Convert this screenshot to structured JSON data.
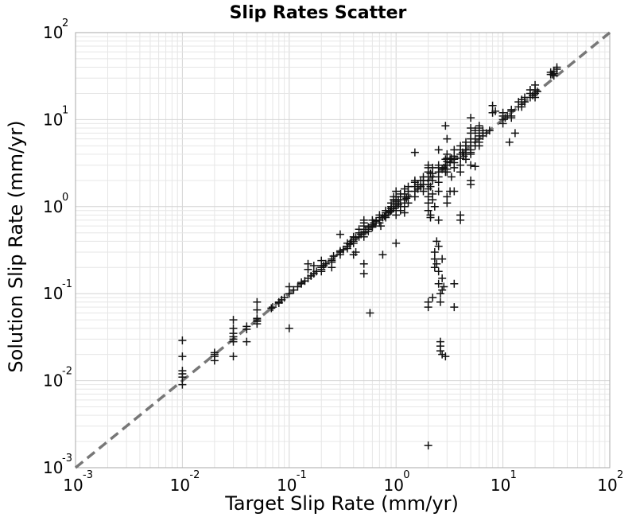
{
  "chart_data": {
    "type": "scatter",
    "title": "Slip Rates Scatter",
    "xlabel": "Target Slip Rate (mm/yr)",
    "ylabel": "Solution Slip Rate (mm/yr)",
    "xscale": "log",
    "yscale": "log",
    "xlim": [
      0.001,
      100
    ],
    "ylim": [
      0.001,
      100
    ],
    "grid": true,
    "marker": "plus",
    "marker_color": "#111111",
    "reference_line": {
      "style": "dashed",
      "color": "#777777",
      "from": [
        0.001,
        0.001
      ],
      "to": [
        100,
        100
      ]
    },
    "x_ticks": [
      {
        "base": "10",
        "exp": "-3"
      },
      {
        "base": "10",
        "exp": "-2"
      },
      {
        "base": "10",
        "exp": "-1"
      },
      {
        "base": "10",
        "exp": "0"
      },
      {
        "base": "10",
        "exp": "1"
      },
      {
        "base": "10",
        "exp": "2"
      }
    ],
    "y_ticks": [
      {
        "base": "10",
        "exp": "-3"
      },
      {
        "base": "10",
        "exp": "-2"
      },
      {
        "base": "10",
        "exp": "-1"
      },
      {
        "base": "10",
        "exp": "0"
      },
      {
        "base": "10",
        "exp": "1"
      },
      {
        "base": "10",
        "exp": "2"
      }
    ],
    "points": [
      [
        0.01,
        0.029
      ],
      [
        0.01,
        0.019
      ],
      [
        0.01,
        0.013
      ],
      [
        0.01,
        0.011
      ],
      [
        0.01,
        0.009
      ],
      [
        0.01,
        0.012
      ],
      [
        0.02,
        0.021
      ],
      [
        0.02,
        0.019
      ],
      [
        0.02,
        0.017
      ],
      [
        0.02,
        0.02
      ],
      [
        0.03,
        0.05
      ],
      [
        0.03,
        0.04
      ],
      [
        0.03,
        0.035
      ],
      [
        0.03,
        0.03
      ],
      [
        0.03,
        0.028
      ],
      [
        0.03,
        0.019
      ],
      [
        0.03,
        0.032
      ],
      [
        0.04,
        0.039
      ],
      [
        0.04,
        0.028
      ],
      [
        0.04,
        0.042
      ],
      [
        0.05,
        0.08
      ],
      [
        0.05,
        0.065
      ],
      [
        0.05,
        0.05
      ],
      [
        0.05,
        0.048
      ],
      [
        0.05,
        0.045
      ],
      [
        0.05,
        0.052
      ],
      [
        0.07,
        0.07
      ],
      [
        0.068,
        0.068
      ],
      [
        0.08,
        0.08
      ],
      [
        0.085,
        0.085
      ],
      [
        0.09,
        0.09
      ],
      [
        0.08,
        0.078
      ],
      [
        0.1,
        0.1
      ],
      [
        0.1,
        0.04
      ],
      [
        0.1,
        0.12
      ],
      [
        0.11,
        0.11
      ],
      [
        0.12,
        0.12
      ],
      [
        0.13,
        0.135
      ],
      [
        0.14,
        0.14
      ],
      [
        0.15,
        0.15
      ],
      [
        0.13,
        0.13
      ],
      [
        0.15,
        0.22
      ],
      [
        0.15,
        0.19
      ],
      [
        0.17,
        0.21
      ],
      [
        0.17,
        0.17
      ],
      [
        0.18,
        0.18
      ],
      [
        0.16,
        0.16
      ],
      [
        0.2,
        0.2
      ],
      [
        0.2,
        0.21
      ],
      [
        0.22,
        0.22
      ],
      [
        0.2,
        0.24
      ],
      [
        0.2,
        0.19
      ],
      [
        0.2,
        0.18
      ],
      [
        0.21,
        0.21
      ],
      [
        0.25,
        0.25
      ],
      [
        0.26,
        0.27
      ],
      [
        0.25,
        0.24
      ],
      [
        0.25,
        0.2
      ],
      [
        0.25,
        0.23
      ],
      [
        0.3,
        0.3
      ],
      [
        0.3,
        0.28
      ],
      [
        0.3,
        0.48
      ],
      [
        0.32,
        0.32
      ],
      [
        0.3,
        0.31
      ],
      [
        0.35,
        0.35
      ],
      [
        0.35,
        0.38
      ],
      [
        0.35,
        0.33
      ],
      [
        0.37,
        0.37
      ],
      [
        0.38,
        0.4
      ],
      [
        0.4,
        0.4
      ],
      [
        0.4,
        0.42
      ],
      [
        0.42,
        0.3
      ],
      [
        0.4,
        0.38
      ],
      [
        0.42,
        0.44
      ],
      [
        0.4,
        0.28
      ],
      [
        0.4,
        0.45
      ],
      [
        0.45,
        0.45
      ],
      [
        0.45,
        0.5
      ],
      [
        0.47,
        0.48
      ],
      [
        0.45,
        0.55
      ],
      [
        0.5,
        0.5
      ],
      [
        0.5,
        0.55
      ],
      [
        0.5,
        0.6
      ],
      [
        0.5,
        0.45
      ],
      [
        0.5,
        0.7
      ],
      [
        0.5,
        0.22
      ],
      [
        0.5,
        0.17
      ],
      [
        0.5,
        0.65
      ],
      [
        0.52,
        0.52
      ],
      [
        0.55,
        0.55
      ],
      [
        0.55,
        0.58
      ],
      [
        0.55,
        0.52
      ],
      [
        0.57,
        0.06
      ],
      [
        0.6,
        0.6
      ],
      [
        0.6,
        0.62
      ],
      [
        0.6,
        0.58
      ],
      [
        0.62,
        0.65
      ],
      [
        0.6,
        0.7
      ],
      [
        0.65,
        0.65
      ],
      [
        0.65,
        0.68
      ],
      [
        0.7,
        0.7
      ],
      [
        0.7,
        0.75
      ],
      [
        0.7,
        0.65
      ],
      [
        0.7,
        0.8
      ],
      [
        0.72,
        0.6
      ],
      [
        0.75,
        0.75
      ],
      [
        0.75,
        0.28
      ],
      [
        0.78,
        0.78
      ],
      [
        0.8,
        0.8
      ],
      [
        0.8,
        0.85
      ],
      [
        0.8,
        0.75
      ],
      [
        0.8,
        0.9
      ],
      [
        0.85,
        0.85
      ],
      [
        0.85,
        0.9
      ],
      [
        0.88,
        0.88
      ],
      [
        0.9,
        0.9
      ],
      [
        0.9,
        1.0
      ],
      [
        0.9,
        1.1
      ],
      [
        0.9,
        0.95
      ],
      [
        0.95,
        0.95
      ],
      [
        0.95,
        1.0
      ],
      [
        0.95,
        1.2
      ],
      [
        0.95,
        1.3
      ],
      [
        1.0,
        1.0
      ],
      [
        1.0,
        1.1
      ],
      [
        1.0,
        1.2
      ],
      [
        1.0,
        1.3
      ],
      [
        1.0,
        1.5
      ],
      [
        1.0,
        0.9
      ],
      [
        1.0,
        0.8
      ],
      [
        1.0,
        0.38
      ],
      [
        1.0,
        1.05
      ],
      [
        1.0,
        1.15
      ],
      [
        1.05,
        1.05
      ],
      [
        1.05,
        1.2
      ],
      [
        1.1,
        1.1
      ],
      [
        1.1,
        1.3
      ],
      [
        1.1,
        1.0
      ],
      [
        1.1,
        1.4
      ],
      [
        1.1,
        0.9
      ],
      [
        1.2,
        1.2
      ],
      [
        1.2,
        1.4
      ],
      [
        1.2,
        1.0
      ],
      [
        1.2,
        0.85
      ],
      [
        1.2,
        1.6
      ],
      [
        1.25,
        1.25
      ],
      [
        1.3,
        1.3
      ],
      [
        1.3,
        1.5
      ],
      [
        1.3,
        1.1
      ],
      [
        1.3,
        1.7
      ],
      [
        1.5,
        1.5
      ],
      [
        1.5,
        1.7
      ],
      [
        1.5,
        1.3
      ],
      [
        1.5,
        4.2
      ],
      [
        1.5,
        1.9
      ],
      [
        1.5,
        2.0
      ],
      [
        1.6,
        1.6
      ],
      [
        1.6,
        1.8
      ],
      [
        1.7,
        1.7
      ],
      [
        1.7,
        2.0
      ],
      [
        1.8,
        1.8
      ],
      [
        1.8,
        2.0
      ],
      [
        1.8,
        1.5
      ],
      [
        1.8,
        2.2
      ],
      [
        2.0,
        2.0
      ],
      [
        2.0,
        2.2
      ],
      [
        2.0,
        2.5
      ],
      [
        2.0,
        1.8
      ],
      [
        2.0,
        1.6
      ],
      [
        2.0,
        1.3
      ],
      [
        2.0,
        1.1
      ],
      [
        2.0,
        3.0
      ],
      [
        2.0,
        0.08
      ],
      [
        2.0,
        0.07
      ],
      [
        2.0,
        0.0018
      ],
      [
        2.0,
        0.9
      ],
      [
        2.0,
        2.8
      ],
      [
        2.1,
        2.4
      ],
      [
        2.1,
        1.7
      ],
      [
        2.1,
        0.8
      ],
      [
        2.1,
        0.75
      ],
      [
        2.2,
        2.2
      ],
      [
        2.2,
        2.4
      ],
      [
        2.2,
        2.0
      ],
      [
        2.2,
        2.8
      ],
      [
        2.2,
        0.09
      ],
      [
        2.2,
        1.4
      ],
      [
        2.2,
        1.2
      ],
      [
        2.3,
        0.3
      ],
      [
        2.3,
        0.25
      ],
      [
        2.3,
        0.2
      ],
      [
        2.3,
        1.0
      ],
      [
        2.4,
        0.22
      ],
      [
        2.4,
        0.4
      ],
      [
        2.5,
        2.5
      ],
      [
        2.5,
        2.8
      ],
      [
        2.5,
        3.0
      ],
      [
        2.5,
        2.2
      ],
      [
        2.5,
        1.9
      ],
      [
        2.5,
        0.35
      ],
      [
        2.5,
        0.18
      ],
      [
        2.5,
        0.13
      ],
      [
        2.5,
        0.7
      ],
      [
        2.5,
        1.5
      ],
      [
        2.5,
        4.5
      ],
      [
        2.6,
        0.08
      ],
      [
        2.6,
        0.025
      ],
      [
        2.6,
        0.022
      ],
      [
        2.6,
        0.028
      ],
      [
        2.6,
        0.1
      ],
      [
        2.7,
        2.7
      ],
      [
        2.7,
        0.25
      ],
      [
        2.7,
        0.15
      ],
      [
        2.7,
        0.11
      ],
      [
        2.7,
        0.02
      ],
      [
        2.8,
        2.8
      ],
      [
        2.8,
        0.12
      ],
      [
        2.9,
        3.0
      ],
      [
        2.9,
        8.5
      ],
      [
        2.9,
        3.5
      ],
      [
        2.9,
        2.5
      ],
      [
        2.9,
        0.019
      ],
      [
        3.0,
        3.0
      ],
      [
        3.0,
        3.3
      ],
      [
        3.0,
        3.6
      ],
      [
        3.0,
        2.7
      ],
      [
        3.0,
        2.5
      ],
      [
        3.0,
        4.0
      ],
      [
        3.0,
        6.0
      ],
      [
        3.0,
        1.3
      ],
      [
        3.0,
        1.1
      ],
      [
        3.2,
        3.2
      ],
      [
        3.2,
        3.5
      ],
      [
        3.2,
        1.5
      ],
      [
        3.3,
        3.6
      ],
      [
        3.3,
        2.2
      ],
      [
        3.5,
        3.5
      ],
      [
        3.5,
        3.8
      ],
      [
        3.5,
        3.2
      ],
      [
        3.5,
        4.5
      ],
      [
        3.5,
        1.5
      ],
      [
        3.5,
        0.13
      ],
      [
        3.5,
        0.07
      ],
      [
        3.5,
        2.8
      ],
      [
        4.0,
        4.0
      ],
      [
        4.0,
        4.5
      ],
      [
        4.0,
        3.6
      ],
      [
        4.0,
        5.0
      ],
      [
        4.0,
        0.8
      ],
      [
        4.0,
        0.7
      ],
      [
        4.0,
        3.0
      ],
      [
        4.0,
        2.5
      ],
      [
        4.2,
        4.2
      ],
      [
        4.3,
        3.8
      ],
      [
        4.5,
        4.5
      ],
      [
        4.5,
        5.0
      ],
      [
        4.5,
        4.0
      ],
      [
        4.5,
        5.5
      ],
      [
        4.5,
        3.5
      ],
      [
        5.0,
        5.0
      ],
      [
        5.0,
        5.5
      ],
      [
        5.0,
        6.0
      ],
      [
        5.0,
        4.5
      ],
      [
        5.0,
        4.0
      ],
      [
        5.0,
        7.0
      ],
      [
        5.0,
        8.0
      ],
      [
        5.0,
        3.0
      ],
      [
        5.0,
        10.5
      ],
      [
        5.0,
        2.0
      ],
      [
        5.0,
        1.8
      ],
      [
        5.0,
        4.2
      ],
      [
        5.5,
        5.5
      ],
      [
        5.5,
        6.0
      ],
      [
        5.5,
        5.0
      ],
      [
        5.5,
        7.5
      ],
      [
        5.5,
        2.9
      ],
      [
        6.0,
        6.0
      ],
      [
        6.0,
        6.5
      ],
      [
        6.0,
        7.0
      ],
      [
        6.0,
        5.5
      ],
      [
        6.0,
        8.0
      ],
      [
        6.0,
        8.5
      ],
      [
        6.0,
        5.0
      ],
      [
        6.5,
        6.5
      ],
      [
        6.5,
        7.0
      ],
      [
        6.5,
        7.5
      ],
      [
        7.0,
        7.0
      ],
      [
        7.5,
        7.5
      ],
      [
        8.0,
        14.5
      ],
      [
        8.5,
        12.5
      ],
      [
        8.0,
        12.0
      ],
      [
        10.0,
        10.0
      ],
      [
        10.0,
        11.0
      ],
      [
        10.0,
        12.0
      ],
      [
        10.0,
        9.0
      ],
      [
        10.5,
        10.5
      ],
      [
        11.0,
        11.0
      ],
      [
        11.5,
        5.5
      ],
      [
        12.0,
        11.0
      ],
      [
        12.0,
        13.0
      ],
      [
        12.0,
        10.5
      ],
      [
        12.0,
        12.5
      ],
      [
        13.0,
        7.0
      ],
      [
        14.0,
        14.0
      ],
      [
        14.0,
        16.0
      ],
      [
        15.0,
        15.0
      ],
      [
        15.0,
        17.0
      ],
      [
        15.0,
        14.0
      ],
      [
        16.0,
        16.0
      ],
      [
        16.0,
        18.0
      ],
      [
        18.0,
        18.0
      ],
      [
        18.0,
        22.0
      ],
      [
        18.0,
        20.0
      ],
      [
        19.0,
        19.0
      ],
      [
        20.0,
        20.0
      ],
      [
        20.0,
        22.0
      ],
      [
        20.0,
        25.0
      ],
      [
        20.0,
        18.0
      ],
      [
        21.0,
        21.0
      ],
      [
        28.0,
        35.0
      ],
      [
        28.0,
        33.0
      ],
      [
        30.0,
        36.0
      ],
      [
        30.0,
        32.0
      ],
      [
        30.0,
        34.0
      ],
      [
        32.0,
        40.0
      ],
      [
        32.0,
        38.0
      ],
      [
        29.0,
        33.0
      ]
    ]
  }
}
